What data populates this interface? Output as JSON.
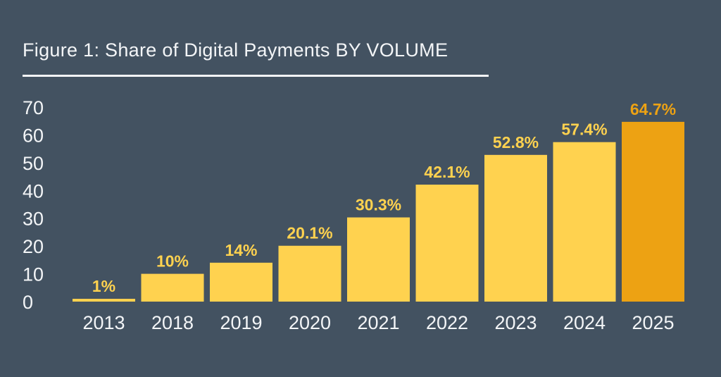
{
  "colors": {
    "background": "#435261",
    "bar": "#FFD24F",
    "bar_highlight": "#EDA213",
    "text": "#F3F5F7"
  },
  "chart_data": {
    "type": "bar",
    "title": "Figure 1: Share of Digital Payments BY VOLUME",
    "xlabel": "",
    "ylabel": "",
    "ylim": [
      0,
      70
    ],
    "yticks": [
      0,
      10,
      20,
      30,
      40,
      50,
      60,
      70
    ],
    "grid": false,
    "legend": "none",
    "categories": [
      "2013",
      "2018",
      "2019",
      "2020",
      "2021",
      "2022",
      "2023",
      "2024",
      "2025"
    ],
    "values": [
      1,
      10,
      14,
      20.1,
      30.3,
      42.1,
      52.8,
      57.4,
      64.7
    ],
    "data_labels": [
      "1%",
      "10%",
      "14%",
      "20.1%",
      "30.3%",
      "42.1%",
      "52.8%",
      "57.4%",
      "64.7%"
    ],
    "highlight_category": "2025"
  }
}
